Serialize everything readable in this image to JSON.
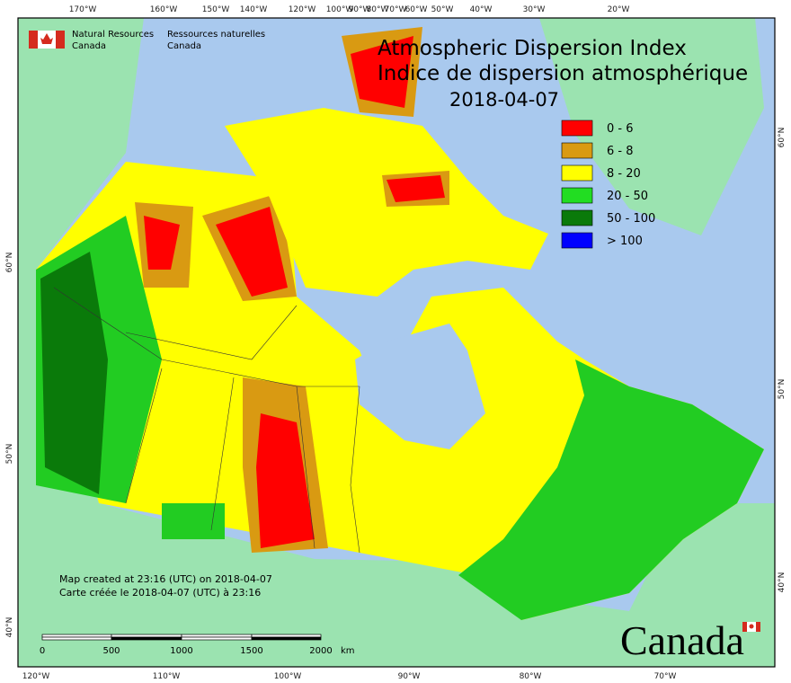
{
  "header": {
    "agency_en": [
      "Natural Resources",
      "Canada"
    ],
    "agency_fr": [
      "Ressources naturelles",
      "Canada"
    ]
  },
  "title": [
    "Atmospheric Dispersion Index",
    "Indice de dispersion atmosphérique"
  ],
  "date": "2018-04-07",
  "legend": [
    {
      "label": "0 - 6",
      "color": "#ff0000"
    },
    {
      "label": "6 - 8",
      "color": "#d99a12"
    },
    {
      "label": "8 - 20",
      "color": "#ffff00"
    },
    {
      "label": "20 - 50",
      "color": "#22dd22"
    },
    {
      "label": "50 - 100",
      "color": "#0a7a0a"
    },
    {
      "label": "> 100",
      "color": "#0000ff"
    }
  ],
  "credits": [
    "Map created at 23:16 (UTC) on 2018-04-07",
    "Carte créée le 2018-04-07 (UTC) à 23:16"
  ],
  "scale": {
    "labels": [
      "0",
      "500",
      "1000",
      "1500",
      "2000"
    ],
    "unit": "km"
  },
  "graticule": {
    "top": [
      "170°W",
      "160°W",
      "150°W",
      "140°W",
      "120°W",
      "100°W",
      "90°W",
      "80°W",
      "70°W",
      "60°W",
      "50°W",
      "40°W",
      "30°W",
      "20°W"
    ],
    "bottom": [
      "120°W",
      "110°W",
      "100°W",
      "90°W",
      "80°W",
      "70°W"
    ],
    "left": [
      "60°N",
      "50°N",
      "40°N"
    ],
    "right": [
      "60°N",
      "50°N",
      "40°N"
    ]
  },
  "wordmark": "Canada"
}
